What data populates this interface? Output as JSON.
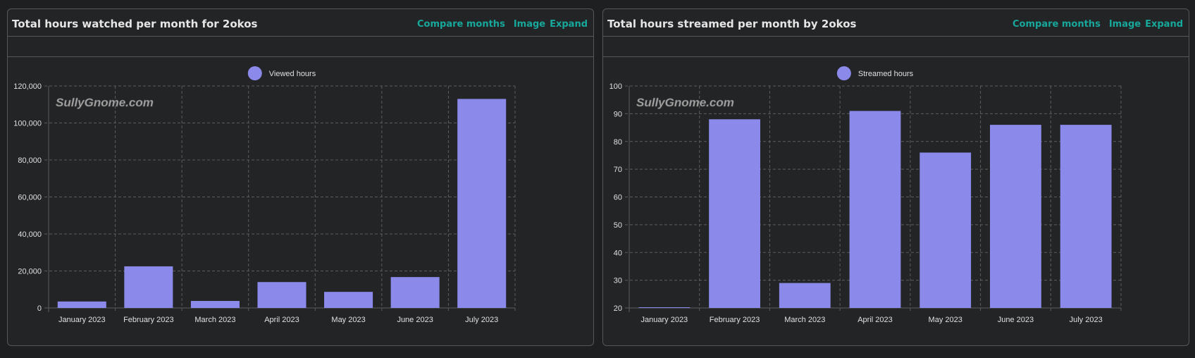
{
  "panels": [
    {
      "title": "Total hours watched per month for 2okos",
      "actions": {
        "compare": "Compare months",
        "image": "Image",
        "expand": "Expand"
      },
      "watermark": "SullyGnome.com"
    },
    {
      "title": "Total hours streamed per month by 2okos",
      "actions": {
        "compare": "Compare months",
        "image": "Image",
        "expand": "Expand"
      },
      "watermark": "SullyGnome.com"
    }
  ],
  "colors": {
    "bar": "#8b8aea",
    "grid": "#5b5d60",
    "axis_text": "#e0e0e0",
    "accent": "#17a89b"
  },
  "chart_data": [
    {
      "type": "bar",
      "title": "Total hours watched per month for 2okos",
      "categories": [
        "January 2023",
        "February 2023",
        "March 2023",
        "April 2023",
        "May 2023",
        "June 2023",
        "July 2023"
      ],
      "series": [
        {
          "name": "Viewed hours",
          "values": [
            3500,
            22500,
            3800,
            14000,
            8700,
            16700,
            113000
          ]
        }
      ],
      "ylim": [
        0,
        120000
      ],
      "yticks": [
        0,
        20000,
        40000,
        60000,
        80000,
        100000,
        120000
      ],
      "ytick_labels": [
        "0",
        "20,000",
        "40,000",
        "60,000",
        "80,000",
        "100,000",
        "120,000"
      ],
      "grid": true,
      "legend": "top-center"
    },
    {
      "type": "bar",
      "title": "Total hours streamed per month by 2okos",
      "categories": [
        "January 2023",
        "February 2023",
        "March 2023",
        "April 2023",
        "May 2023",
        "June 2023",
        "July 2023"
      ],
      "series": [
        {
          "name": "Streamed hours",
          "values": [
            20,
            88,
            29,
            91,
            76,
            86,
            86
          ]
        }
      ],
      "ylim": [
        20,
        100
      ],
      "yticks": [
        20,
        30,
        40,
        50,
        60,
        70,
        80,
        90,
        100
      ],
      "ytick_labels": [
        "20",
        "30",
        "40",
        "50",
        "60",
        "70",
        "80",
        "90",
        "100"
      ],
      "grid": true,
      "legend": "top-center"
    }
  ]
}
